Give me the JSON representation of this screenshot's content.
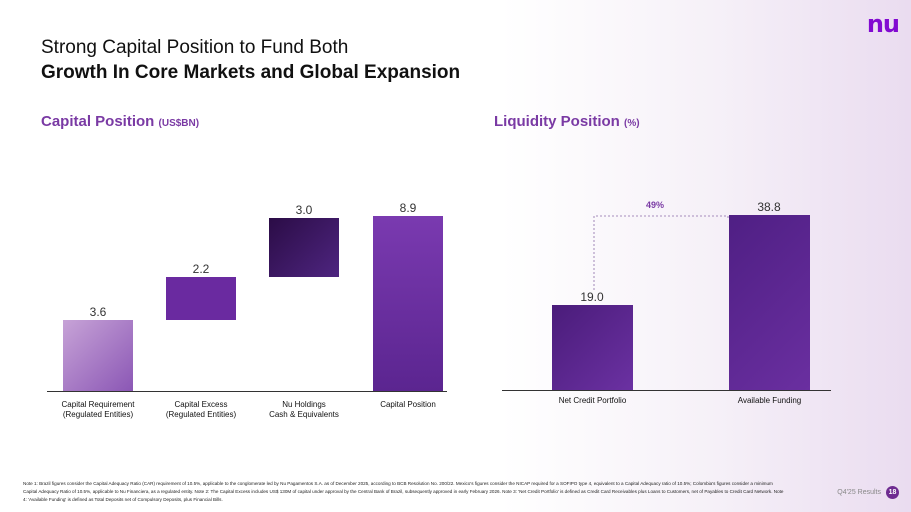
{
  "logo": "nu",
  "title_line1": "Strong Capital Position to Fund Both",
  "title_line2": "Growth In Core Markets and Global Expansion",
  "capital": {
    "heading": "Capital Position",
    "unit": "(US$BN)"
  },
  "liquidity": {
    "heading": "Liquidity Position",
    "unit": "(%)",
    "ratio_label": "49%"
  },
  "chart_data": [
    {
      "type": "bar",
      "subtype": "waterfall",
      "title": "Capital Position (US$BN)",
      "categories": [
        "Capital Requirement\n(Regulated Entities)",
        "Capital Excess\n(Regulated Entities)",
        "Nu Holdings\nCash & Equivalents",
        "Capital Position"
      ],
      "values": [
        3.6,
        2.2,
        3.0,
        8.9
      ],
      "value_labels": [
        "3.6",
        "2.2",
        "3.0",
        "8.9"
      ],
      "total_index": 3,
      "colors": [
        "#b58ac9",
        "#6a2aa0",
        "#3c1760",
        "#6f2ea1"
      ]
    },
    {
      "type": "bar",
      "title": "Liquidity Position (%)",
      "categories": [
        "Net Credit Portfolio",
        "Available Funding"
      ],
      "values": [
        19.0,
        38.8
      ],
      "value_labels": [
        "19.0",
        "38.8"
      ],
      "annotation": "49%",
      "colors": [
        "#5a2590",
        "#5e2893"
      ]
    }
  ],
  "note": "Note 1: Brazil figures consider the Capital Adequacy Ratio (CAR) requirement of 10.5%, applicable to the conglomerate led by Nu Pagamentos S.A. as of December 2025, according to BCB Resolution No. 200/22. Mexico's figures consider the NICAP required for a SOFIPO type 4, equivalent to a Capital Adequacy ratio of 10.5%; Colombia's figures consider a minimum Capital Adequacy Ratio of 10.5%, applicable to Nu Financiera, as a regulated entity. Note 2: The Capital Excess includes US$ 130M of capital under approval by the Central Bank of Brazil, subsequently approved in early February 2026. Note 3: 'Net Credit Portfolio' is defined as Credit Card Receivables plus Loans to Customers, net of Payables to Credit Card Network. Note 4: 'Available Funding' is defined as Total Deposits net of Compulsory Deposits, plus Financial Bills.",
  "footer": {
    "label": "Q4'25 Results",
    "page": "18"
  }
}
